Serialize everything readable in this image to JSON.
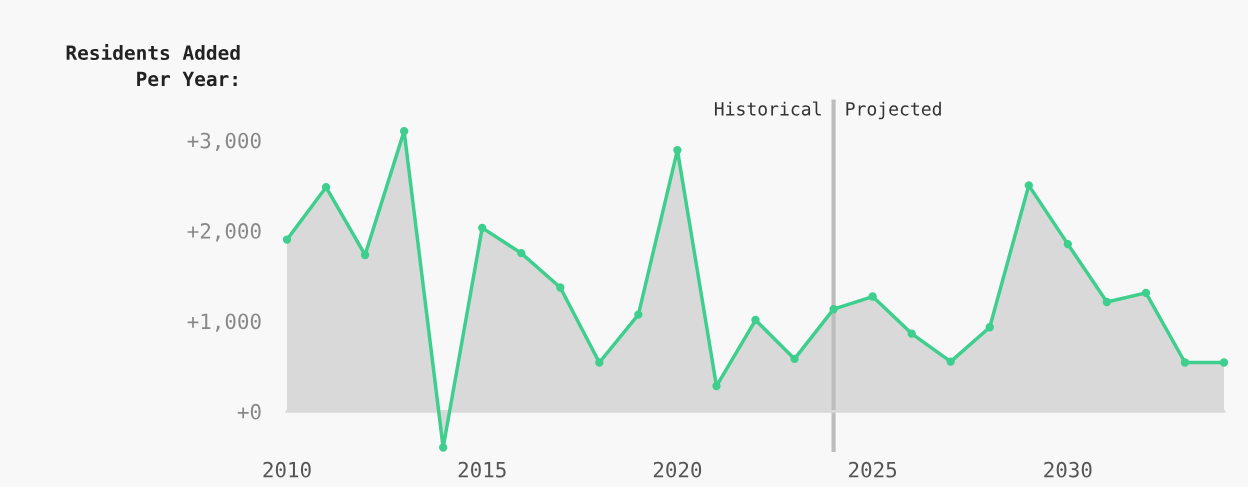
{
  "chart_data": {
    "type": "area",
    "ylabel": "Residents Added\nPer Year:",
    "x": [
      2010,
      2011,
      2012,
      2013,
      2014,
      2015,
      2016,
      2017,
      2018,
      2019,
      2020,
      2021,
      2022,
      2023,
      2024,
      2025,
      2026,
      2027,
      2028,
      2029,
      2030,
      2031,
      2032,
      2033,
      2034
    ],
    "series": [
      {
        "color": "#3ecf8e",
        "values": [
          1900,
          2480,
          1730,
          3100,
          -400,
          2030,
          1750,
          1370,
          540,
          1070,
          2890,
          280,
          1010,
          580,
          1130,
          1270,
          860,
          550,
          930,
          2500,
          1850,
          1210,
          1310,
          540,
          540
        ]
      }
    ],
    "marker": "circle",
    "grid": false,
    "xlim": [
      2010,
      2034
    ],
    "xticks": [
      2010,
      2015,
      2020,
      2025,
      2030
    ],
    "ylim": [
      -450,
      3450
    ],
    "yticks": [
      {
        "value": 0,
        "label": "+0"
      },
      {
        "value": 1000,
        "label": "+1,000"
      },
      {
        "value": 2000,
        "label": "+2,000"
      },
      {
        "value": 3000,
        "label": "+3,000"
      }
    ],
    "ref_lines": [
      {
        "axis": "x",
        "value": 2024,
        "color": "#bdbdbd"
      }
    ],
    "annotations": [
      {
        "text": "Historical",
        "x": 2024,
        "y": 3330
      },
      {
        "text": "Projected",
        "x": 2024,
        "y": 3330
      }
    ]
  }
}
